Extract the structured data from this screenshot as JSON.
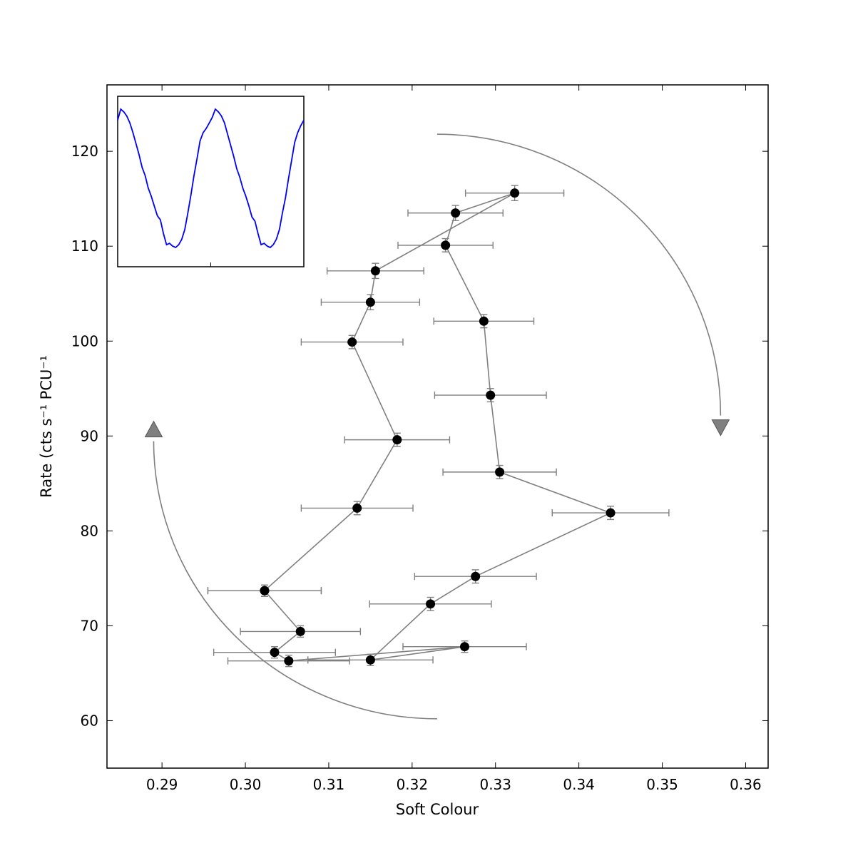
{
  "chart_data": {
    "type": "scatter",
    "xlabel": "Soft Colour",
    "ylabel": "Rate (cts s⁻¹ PCU⁻¹",
    "xlim": [
      0.2834,
      0.3627
    ],
    "ylim": [
      55.0,
      127.0
    ],
    "x_ticks": [
      0.29,
      0.3,
      0.31,
      0.32,
      0.33,
      0.34,
      0.35,
      0.36
    ],
    "x_tick_labels": [
      "0.29",
      "0.30",
      "0.31",
      "0.32",
      "0.33",
      "0.34",
      "0.35",
      "0.36"
    ],
    "y_ticks": [
      60,
      70,
      80,
      90,
      100,
      110,
      120
    ],
    "y_tick_labels": [
      "60",
      "70",
      "80",
      "90",
      "100",
      "110",
      "120"
    ],
    "grid": false,
    "colors": {
      "points": "#000000",
      "line": "#808080",
      "arrows": "#808080",
      "inset_line": "#0000ff"
    },
    "series": [
      {
        "points": [
          {
            "x": 0.3023,
            "y": 73.7,
            "xerr": 0.0068,
            "yerr": 0.6
          },
          {
            "x": 0.3066,
            "y": 69.4,
            "xerr": 0.0072,
            "yerr": 0.6
          },
          {
            "x": 0.3035,
            "y": 67.2,
            "xerr": 0.0073,
            "yerr": 0.6
          },
          {
            "x": 0.3052,
            "y": 66.3,
            "xerr": 0.0073,
            "yerr": 0.6
          },
          {
            "x": 0.3263,
            "y": 67.8,
            "xerr": 0.0074,
            "yerr": 0.6
          },
          {
            "x": 0.315,
            "y": 66.4,
            "xerr": 0.0075,
            "yerr": 0.6
          },
          {
            "x": 0.3222,
            "y": 72.3,
            "xerr": 0.0073,
            "yerr": 0.7
          },
          {
            "x": 0.3276,
            "y": 75.2,
            "xerr": 0.0073,
            "yerr": 0.7
          },
          {
            "x": 0.3438,
            "y": 81.9,
            "xerr": 0.007,
            "yerr": 0.7
          },
          {
            "x": 0.3305,
            "y": 86.2,
            "xerr": 0.0068,
            "yerr": 0.7
          },
          {
            "x": 0.3294,
            "y": 94.3,
            "xerr": 0.0067,
            "yerr": 0.7
          },
          {
            "x": 0.3286,
            "y": 102.1,
            "xerr": 0.006,
            "yerr": 0.7
          },
          {
            "x": 0.324,
            "y": 110.1,
            "xerr": 0.0057,
            "yerr": 0.7
          },
          {
            "x": 0.3252,
            "y": 113.5,
            "xerr": 0.0057,
            "yerr": 0.8
          },
          {
            "x": 0.3323,
            "y": 115.6,
            "xerr": 0.0059,
            "yerr": 0.8
          },
          {
            "x": 0.3156,
            "y": 107.4,
            "xerr": 0.0058,
            "yerr": 0.8
          },
          {
            "x": 0.315,
            "y": 104.1,
            "xerr": 0.0059,
            "yerr": 0.8
          },
          {
            "x": 0.3128,
            "y": 99.9,
            "xerr": 0.0061,
            "yerr": 0.7
          },
          {
            "x": 0.3182,
            "y": 89.6,
            "xerr": 0.0063,
            "yerr": 0.7
          },
          {
            "x": 0.3134,
            "y": 82.4,
            "xerr": 0.0067,
            "yerr": 0.7
          },
          {
            "x": 0.3023,
            "y": 73.7,
            "xerr": 0.0068,
            "yerr": 0.6
          }
        ]
      }
    ],
    "arrows": [
      {
        "direction": "clockwise",
        "start": [
          0.323,
          121.8
        ],
        "end": [
          0.357,
          90.8
        ]
      },
      {
        "direction": "counterclockwise",
        "start": [
          0.323,
          60.2
        ],
        "end": [
          0.289,
          90.8
        ]
      }
    ],
    "inset": {
      "type": "line",
      "note_none": "",
      "values": [
        0.92,
        1.0,
        0.98,
        0.95,
        0.9,
        0.83,
        0.75,
        0.67,
        0.58,
        0.52,
        0.43,
        0.37,
        0.3,
        0.23,
        0.2,
        0.1,
        0.02,
        0.03,
        0.01,
        0.0,
        0.02,
        0.06,
        0.13,
        0.25,
        0.38,
        0.52,
        0.64,
        0.77,
        0.83,
        0.86,
        0.9,
        0.94,
        1.0,
        0.98,
        0.95,
        0.9,
        0.82,
        0.74,
        0.66,
        0.57,
        0.51,
        0.43,
        0.37,
        0.3,
        0.22,
        0.19,
        0.1,
        0.02,
        0.03,
        0.01,
        0.0,
        0.02,
        0.06,
        0.13,
        0.25,
        0.36,
        0.5,
        0.63,
        0.76,
        0.83,
        0.88,
        0.92
      ]
    }
  }
}
